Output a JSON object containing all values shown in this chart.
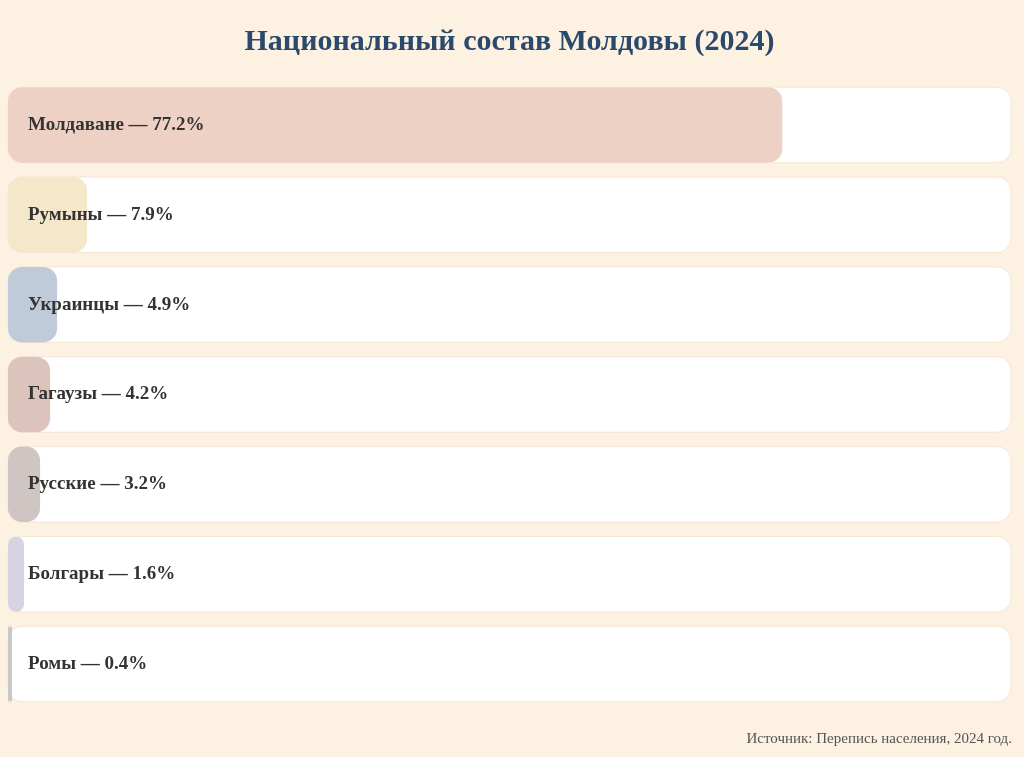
{
  "chart_data": {
    "type": "bar",
    "orientation": "horizontal",
    "title": "Национальный состав Молдовы (2024)",
    "categories": [
      null,
      null,
      null,
      null,
      null,
      null,
      null
    ],
    "values": [
      77.2,
      7.9,
      4.9,
      4.2,
      3.2,
      1.6,
      0.4
    ],
    "value_labels": [
      "Молдаване — 77.2%",
      "Румыны — 7.9%",
      "Украинцы — 4.9%",
      "Гагаузы — 4.2%",
      "Русские — 3.2%",
      "Болгары — 1.6%",
      "Ромы — 0.4%"
    ],
    "colors": [
      "#eed1c5",
      "#f5e7c9",
      "#bfcbd8",
      "#dcc3bc",
      "#cfc6c4",
      "#d8d3e2",
      "#c8c8c8"
    ],
    "xlim": [
      0,
      100
    ],
    "tick_labels": false,
    "legend": false,
    "annotations": [
      "Источник: Перепись населения, 2024 год."
    ]
  }
}
